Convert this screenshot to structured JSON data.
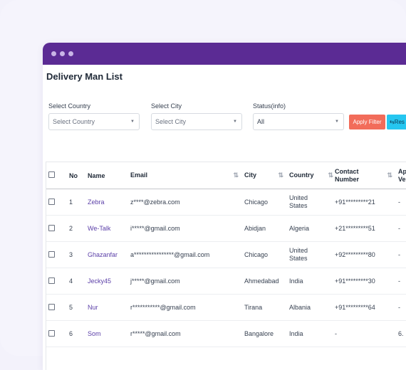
{
  "page": {
    "title": "Delivery Man List"
  },
  "filters": {
    "country": {
      "label": "Select Country",
      "placeholder": "Select Country"
    },
    "city": {
      "label": "Select City",
      "placeholder": "Select City"
    },
    "status": {
      "label": "Status(info)",
      "value": "All"
    },
    "apply_label": "Apply Filter",
    "reset_label": "Res"
  },
  "table": {
    "headers": {
      "no": "No",
      "name": "Name",
      "email": "Email",
      "city": "City",
      "country": "Country",
      "contact_line1": "Contact",
      "contact_line2": "Number",
      "extra_line1": "Ap",
      "extra_line2": "Ve"
    },
    "rows": [
      {
        "no": "1",
        "name": "Zebra",
        "email": "z****@zebra.com",
        "city": "Chicago",
        "country_l1": "United",
        "country_l2": "States",
        "contact": "+91*********21",
        "extra": "-"
      },
      {
        "no": "2",
        "name": "We-Talk",
        "email": "i*****@gmail.com",
        "city": "Abidjan",
        "country_l1": "Algeria",
        "country_l2": "",
        "contact": "+21*********51",
        "extra": "-"
      },
      {
        "no": "3",
        "name": "Ghazanfar",
        "email": "a****************@gmail.com",
        "city": "Chicago",
        "country_l1": "United",
        "country_l2": "States",
        "contact": "+92*********80",
        "extra": "-"
      },
      {
        "no": "4",
        "name": "Jecky45",
        "email": "j*****@gmail.com",
        "city": "Ahmedabad",
        "country_l1": "India",
        "country_l2": "",
        "contact": "+91*********30",
        "extra": "-"
      },
      {
        "no": "5",
        "name": "Nur",
        "email": "r***********@gmail.com",
        "city": "Tirana",
        "country_l1": "Albania",
        "country_l2": "",
        "contact": "+91*********64",
        "extra": "-"
      },
      {
        "no": "6",
        "name": "Som",
        "email": "r*****@gmail.com",
        "city": "Bangalore",
        "country_l1": "India",
        "country_l2": "",
        "contact": "-",
        "extra": "6."
      }
    ]
  },
  "icons": {
    "sort": "sort-arrows-icon",
    "caret": "chevron-down-icon",
    "reset": "swap-arrows-icon"
  },
  "colors": {
    "titlebar": "#5b2b94",
    "apply_button": "#f26c5a",
    "reset_button": "#26c6f0",
    "name_link": "#5b3fa8"
  }
}
